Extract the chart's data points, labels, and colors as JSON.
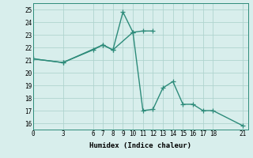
{
  "line1_x": [
    0,
    3,
    7,
    8,
    9,
    10,
    11,
    12
  ],
  "line1_y": [
    21.1,
    20.8,
    22.2,
    21.8,
    24.8,
    23.2,
    23.3,
    23.3
  ],
  "line2_x": [
    0,
    3,
    6,
    7,
    8,
    10,
    11,
    12,
    13,
    14,
    15,
    16,
    17,
    18,
    21
  ],
  "line2_y": [
    21.1,
    20.8,
    21.8,
    22.2,
    21.8,
    23.2,
    17.0,
    17.1,
    18.8,
    19.3,
    17.5,
    17.5,
    17.0,
    17.0,
    15.8
  ],
  "line_color": "#2d8b7a",
  "bg_color": "#d8eeec",
  "grid_color": "#b0d4cf",
  "xlabel": "Humidex (Indice chaleur)",
  "xticks": [
    0,
    3,
    6,
    7,
    8,
    9,
    10,
    11,
    12,
    13,
    14,
    15,
    16,
    17,
    18,
    21
  ],
  "yticks": [
    16,
    17,
    18,
    19,
    20,
    21,
    22,
    23,
    24,
    25
  ],
  "xlim": [
    0,
    21.5
  ],
  "ylim": [
    15.5,
    25.5
  ],
  "marker": "+",
  "markersize": 4,
  "linewidth": 1.0,
  "tick_fontsize": 5.5,
  "xlabel_fontsize": 6.5
}
